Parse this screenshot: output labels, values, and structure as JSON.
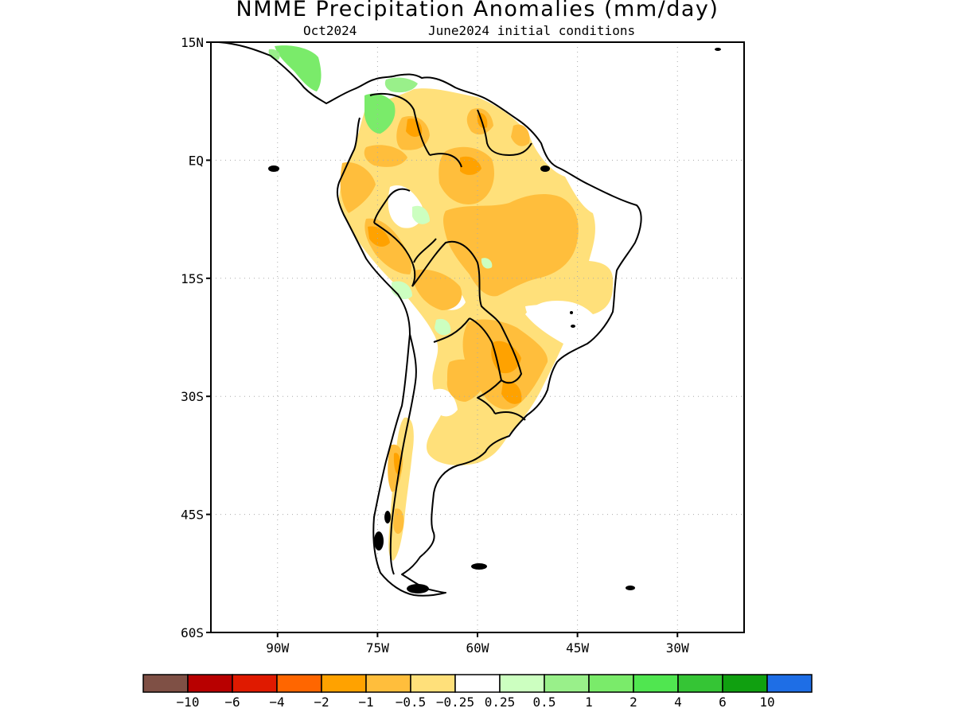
{
  "title": "NMME Precipitation Anomalies (mm/day)",
  "valid_month": "Oct2024",
  "initial_conditions": "June2024 initial conditions",
  "map": {
    "lon_range": [
      -100,
      -20
    ],
    "lat_range": [
      -60,
      15
    ],
    "lat_ticks": [
      {
        "value": 15,
        "label": "15N"
      },
      {
        "value": 0,
        "label": "EQ"
      },
      {
        "value": -15,
        "label": "15S"
      },
      {
        "value": -30,
        "label": "30S"
      },
      {
        "value": -45,
        "label": "45S"
      },
      {
        "value": -60,
        "label": "60S"
      }
    ],
    "lon_ticks": [
      {
        "value": -90,
        "label": "90W"
      },
      {
        "value": -75,
        "label": "75W"
      },
      {
        "value": -60,
        "label": "60W"
      },
      {
        "value": -45,
        "label": "45W"
      },
      {
        "value": -30,
        "label": "30W"
      }
    ],
    "grid": "dotted",
    "region": "South America"
  },
  "colorbar": {
    "colors": [
      "#7f5045",
      "#b80000",
      "#e01a00",
      "#ff6600",
      "#ffa200",
      "#ffbe3c",
      "#ffe07a",
      "#ffffff",
      "#ccffc0",
      "#99f08a",
      "#7aeb6a",
      "#50e650",
      "#35c535",
      "#10a010",
      "#1e6ee6"
    ],
    "labels": [
      "−10",
      "−6",
      "−4",
      "−2",
      "−1",
      "−0.5",
      "−0.25",
      "0.25",
      "0.5",
      "1",
      "2",
      "4",
      "6",
      "10"
    ]
  }
}
